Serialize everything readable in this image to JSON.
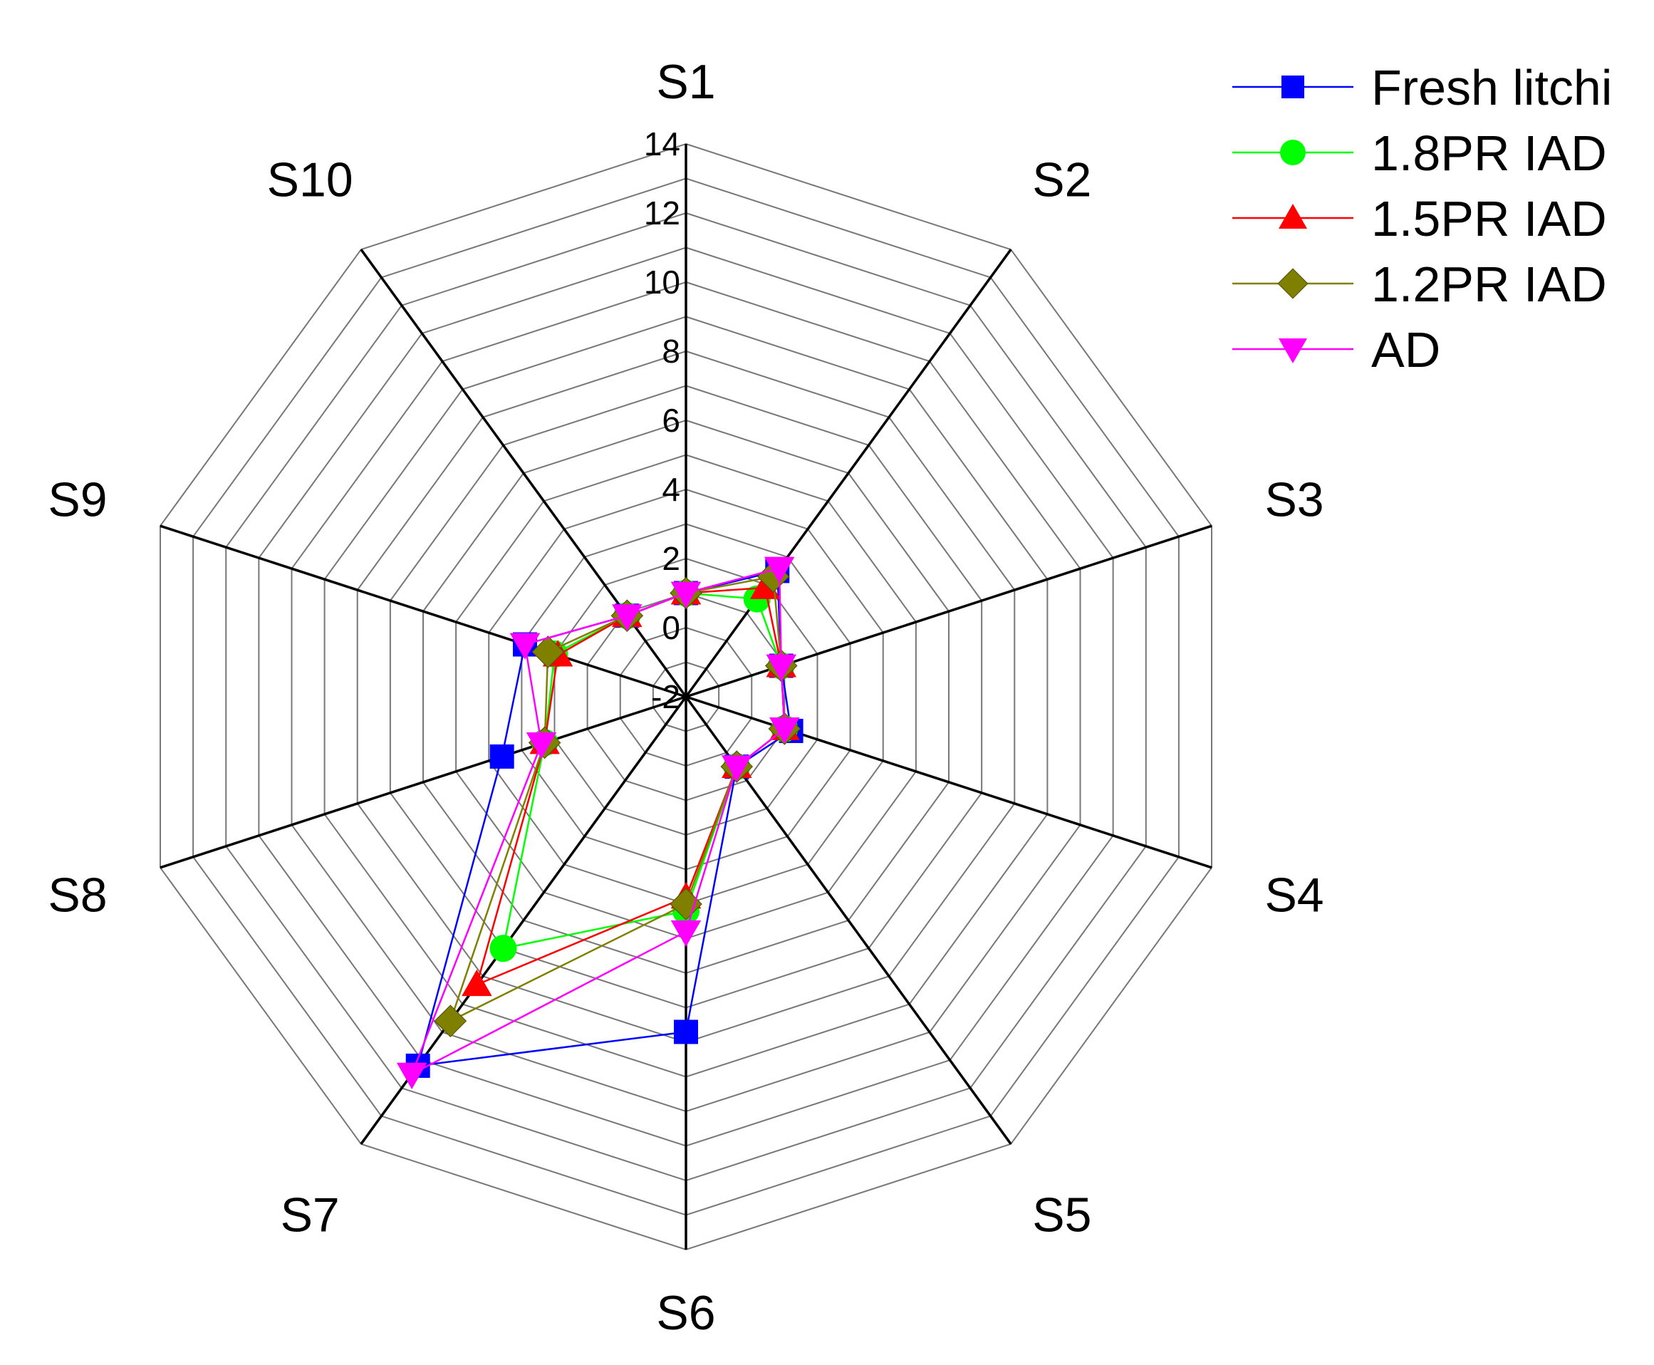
{
  "chart_data": {
    "type": "radar",
    "title": "",
    "axes": [
      "S1",
      "S2",
      "S3",
      "S4",
      "S5",
      "S6",
      "S7",
      "S8",
      "S9",
      "S10"
    ],
    "rlim": [
      -2,
      14
    ],
    "ticks": [
      "14",
      "12",
      "10",
      "8",
      "6",
      "4",
      "2",
      "0",
      "-2"
    ],
    "tick_values": [
      14,
      12,
      10,
      8,
      6,
      4,
      2,
      0,
      -2
    ],
    "legend_position": "top-right",
    "series": [
      {
        "name": "Fresh litchi",
        "color": "#0000ff",
        "marker": "square",
        "values": [
          1.0,
          2.5,
          0.9,
          1.2,
          0.5,
          7.7,
          11.2,
          3.6,
          2.9,
          0.9
        ]
      },
      {
        "name": "1.8PR IAD",
        "color": "#00ff00",
        "marker": "circle",
        "values": [
          1.0,
          1.5,
          0.9,
          1.0,
          0.5,
          4.2,
          7.0,
          2.3,
          2.0,
          0.9
        ]
      },
      {
        "name": "1.5PR IAD",
        "color": "#ff0000",
        "marker": "triangle-up",
        "values": [
          1.0,
          1.9,
          0.9,
          1.0,
          0.5,
          3.8,
          8.3,
          2.3,
          1.9,
          0.9
        ]
      },
      {
        "name": "1.2PR IAD",
        "color": "#808000",
        "marker": "diamond",
        "values": [
          1.0,
          2.3,
          0.9,
          1.0,
          0.5,
          4.0,
          9.6,
          2.3,
          2.2,
          0.9
        ]
      },
      {
        "name": "AD",
        "color": "#ff00ff",
        "marker": "triangle-down",
        "values": [
          1.0,
          2.6,
          0.9,
          1.0,
          0.5,
          4.8,
          11.5,
          2.4,
          2.9,
          0.9
        ]
      }
    ]
  }
}
